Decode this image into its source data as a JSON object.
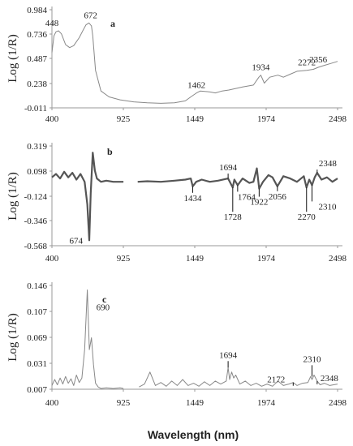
{
  "x_title": "Wavelength (nm)",
  "chart_data": [
    {
      "type": "line",
      "panel_label": "a",
      "ylabel": "Log (1/R)",
      "xlim": [
        400,
        2498
      ],
      "ylim": [
        -0.011,
        0.984
      ],
      "x_ticks": [
        "400",
        "925",
        "1449",
        "1974",
        "2498"
      ],
      "y_ticks": [
        "0.984",
        "0.736",
        "0.487",
        "0.238",
        "-0.011"
      ],
      "series": [
        {
          "x": [
            400,
            415,
            430,
            448,
            470,
            500,
            530,
            560,
            600,
            630,
            650,
            672,
            690,
            700,
            720,
            760,
            820,
            900,
            1000,
            1100,
            1200,
            1300,
            1380,
            1420,
            1462,
            1490,
            1560,
            1600,
            1650,
            1700,
            1800,
            1880,
            1920,
            1934,
            1960,
            2000,
            2060,
            2100,
            2150,
            2200,
            2272,
            2320,
            2356,
            2400,
            2450,
            2498
          ],
          "y": [
            0.55,
            0.72,
            0.76,
            0.77,
            0.74,
            0.63,
            0.6,
            0.62,
            0.7,
            0.78,
            0.83,
            0.85,
            0.82,
            0.72,
            0.37,
            0.16,
            0.1,
            0.07,
            0.05,
            0.04,
            0.035,
            0.04,
            0.06,
            0.1,
            0.14,
            0.16,
            0.15,
            0.14,
            0.16,
            0.17,
            0.2,
            0.22,
            0.3,
            0.32,
            0.24,
            0.3,
            0.32,
            0.3,
            0.33,
            0.36,
            0.37,
            0.38,
            0.4,
            0.42,
            0.44,
            0.46
          ]
        }
      ],
      "annotations": [
        {
          "text": "448",
          "x": 448,
          "y": 0.77
        },
        {
          "text": "672",
          "x": 672,
          "y": 0.85
        },
        {
          "text": "1462",
          "x": 1462,
          "y": 0.14
        },
        {
          "text": "1934",
          "x": 1934,
          "y": 0.32
        },
        {
          "text": "2272",
          "x": 2272,
          "y": 0.37
        },
        {
          "text": "2356",
          "x": 2356,
          "y": 0.4
        }
      ]
    },
    {
      "type": "line",
      "panel_label": "b",
      "ylabel": "Log (1/R)",
      "xlim": [
        400,
        2498
      ],
      "ylim": [
        -0.568,
        0.319
      ],
      "x_ticks": [
        "400",
        "925",
        "1449",
        "1974",
        "2498"
      ],
      "y_ticks": [
        "0.319",
        "0.098",
        "-0.124",
        "-0.346",
        "-0.568"
      ],
      "series": [
        {
          "x": [
            400,
            430,
            460,
            490,
            520,
            550,
            580,
            610,
            640,
            660,
            674,
            685,
            700,
            715,
            730,
            760,
            800,
            850,
            900,
            925
          ],
          "y": [
            0.04,
            0.07,
            0.03,
            0.09,
            0.04,
            0.08,
            0.02,
            0.07,
            0.0,
            -0.2,
            -0.52,
            -0.1,
            0.26,
            0.1,
            0.03,
            0.0,
            0.01,
            0.0,
            0.0,
            0.0
          ]
        },
        {
          "x": [
            1030,
            1100,
            1200,
            1300,
            1380,
            1420,
            1434,
            1460,
            1500,
            1560,
            1620,
            1694,
            1728,
            1740,
            1764,
            1800,
            1850,
            1880,
            1905,
            1922,
            1950,
            1990,
            2020,
            2056,
            2100,
            2150,
            2200,
            2250,
            2270,
            2290,
            2310,
            2330,
            2348,
            2380,
            2420,
            2460,
            2498
          ],
          "y": [
            0.0,
            0.005,
            0.0,
            0.01,
            0.02,
            0.03,
            -0.04,
            0.0,
            0.02,
            0.0,
            0.01,
            0.03,
            -0.05,
            0.02,
            -0.03,
            0.03,
            -0.01,
            0.0,
            0.12,
            -0.06,
            0.0,
            0.06,
            0.04,
            -0.04,
            0.05,
            0.03,
            0.0,
            0.05,
            -0.05,
            0.02,
            -0.03,
            0.04,
            0.08,
            0.02,
            0.04,
            0.0,
            0.03
          ]
        }
      ],
      "annotations": [
        {
          "text": "674",
          "x": 674,
          "y": -0.52
        },
        {
          "text": "1434",
          "x": 1434,
          "y": -0.04
        },
        {
          "text": "1694",
          "x": 1694,
          "y": 0.03
        },
        {
          "text": "1728",
          "x": 1728,
          "y": -0.05
        },
        {
          "text": "1764",
          "x": 1764,
          "y": -0.03
        },
        {
          "text": "1922",
          "x": 1922,
          "y": -0.06
        },
        {
          "text": "2056",
          "x": 2056,
          "y": -0.04
        },
        {
          "text": "2270",
          "x": 2270,
          "y": -0.05
        },
        {
          "text": "2310",
          "x": 2310,
          "y": -0.03
        },
        {
          "text": "2348",
          "x": 2348,
          "y": 0.08
        }
      ]
    },
    {
      "type": "line",
      "panel_label": "c",
      "ylabel": "Log (1/R)",
      "xlim": [
        400,
        2498
      ],
      "ylim": [
        0.007,
        0.146
      ],
      "x_ticks": [
        "400",
        "925",
        "1449",
        "1974",
        "2498"
      ],
      "y_ticks": [
        "0.146",
        "0.107",
        "0.069",
        "0.031",
        "0.007"
      ],
      "series": [
        {
          "x": [
            400,
            420,
            440,
            460,
            480,
            500,
            520,
            540,
            560,
            580,
            600,
            620,
            640,
            660,
            675,
            690,
            705,
            720,
            740,
            760,
            800,
            850,
            900,
            925
          ],
          "y": [
            0.012,
            0.02,
            0.013,
            0.022,
            0.014,
            0.024,
            0.015,
            0.021,
            0.012,
            0.026,
            0.016,
            0.022,
            0.06,
            0.14,
            0.06,
            0.076,
            0.04,
            0.015,
            0.01,
            0.008,
            0.009,
            0.008,
            0.009,
            0.008
          ]
        },
        {
          "x": [
            1040,
            1080,
            1120,
            1160,
            1200,
            1240,
            1280,
            1320,
            1360,
            1400,
            1440,
            1480,
            1520,
            1560,
            1600,
            1640,
            1680,
            1694,
            1705,
            1720,
            1735,
            1750,
            1780,
            1820,
            1860,
            1900,
            1940,
            1980,
            2020,
            2060,
            2100,
            2140,
            2172,
            2200,
            2240,
            2280,
            2300,
            2310,
            2325,
            2348,
            2370,
            2400,
            2440,
            2498
          ],
          "y": [
            0.01,
            0.014,
            0.03,
            0.012,
            0.016,
            0.011,
            0.018,
            0.012,
            0.02,
            0.012,
            0.015,
            0.011,
            0.017,
            0.012,
            0.018,
            0.014,
            0.018,
            0.036,
            0.02,
            0.03,
            0.022,
            0.026,
            0.014,
            0.018,
            0.012,
            0.015,
            0.011,
            0.014,
            0.011,
            0.018,
            0.012,
            0.014,
            0.016,
            0.012,
            0.015,
            0.016,
            0.024,
            0.02,
            0.026,
            0.018,
            0.013,
            0.015,
            0.012,
            0.014
          ]
        }
      ],
      "annotations": [
        {
          "text": "690",
          "x": 690,
          "y": 0.076
        },
        {
          "text": "1694",
          "x": 1694,
          "y": 0.036
        },
        {
          "text": "2172",
          "x": 2172,
          "y": 0.016
        },
        {
          "text": "2310",
          "x": 2310,
          "y": 0.024
        },
        {
          "text": "2348",
          "x": 2348,
          "y": 0.018
        }
      ]
    }
  ]
}
